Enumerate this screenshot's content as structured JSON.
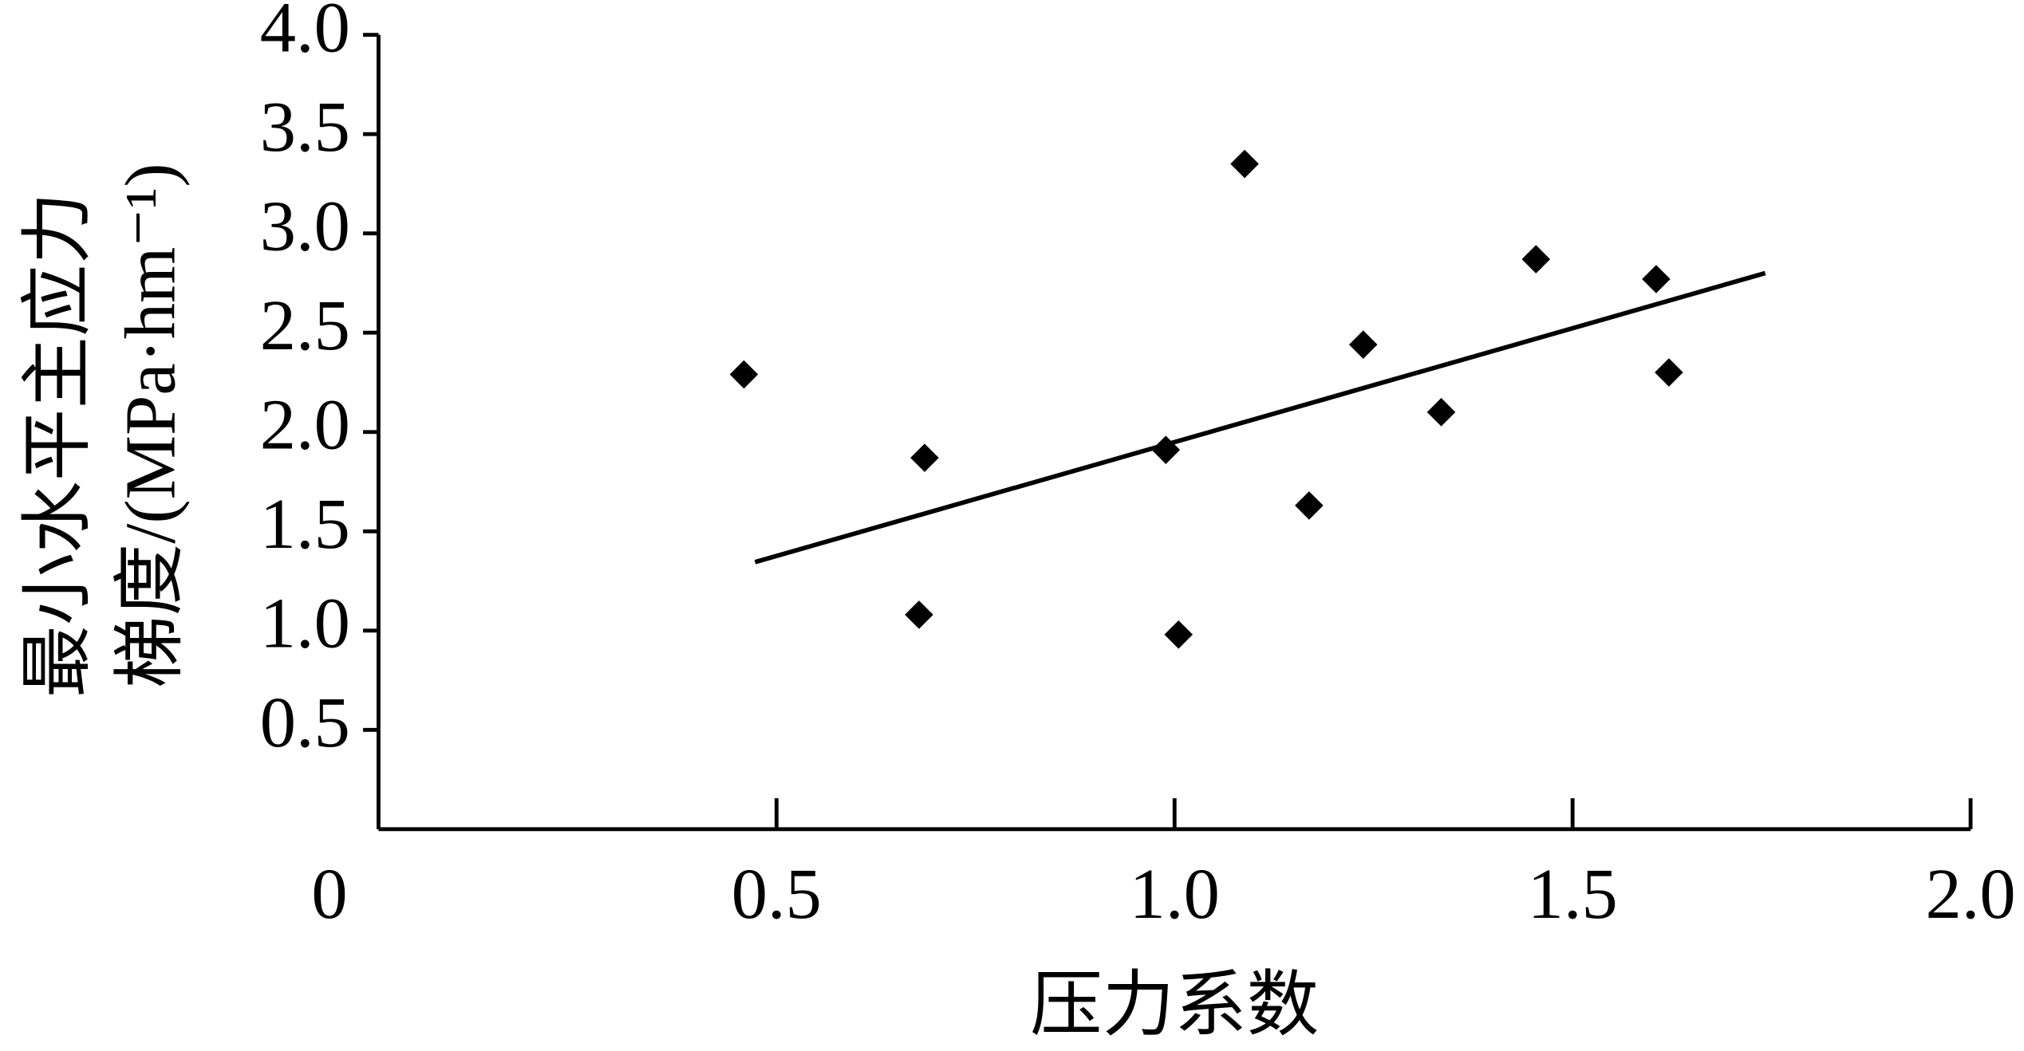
{
  "chart_data": {
    "type": "scatter",
    "xlabel": "压力系数",
    "ylabel": [
      "最小水平主应力",
      "梯度/(MPa·hm⁻¹)"
    ],
    "x": [
      0.459,
      0.686,
      0.679,
      0.989,
      1.005,
      1.088,
      1.169,
      1.237,
      1.335,
      1.454,
      1.605,
      1.621
    ],
    "values": [
      2.29,
      1.87,
      1.08,
      1.91,
      0.98,
      3.35,
      1.63,
      2.44,
      2.1,
      2.87,
      2.77,
      2.3
    ],
    "color": "#000000",
    "trendline": {
      "x": [
        0.473,
        1.742
      ],
      "y": [
        1.345,
        2.8
      ]
    },
    "xlim": [
      0,
      2
    ],
    "xticks": [
      0,
      0.5,
      {
        "value": 1,
        "label": "1.0"
      },
      1.5,
      {
        "value": 2,
        "label": "2.0"
      }
    ],
    "ylim": [
      0,
      4
    ],
    "yticks": [
      0.5,
      {
        "value": 1,
        "label": "1.0"
      },
      1.5,
      {
        "value": 2,
        "label": "2.0"
      },
      2.5,
      {
        "value": 3,
        "label": "3.0"
      },
      3.5,
      {
        "value": 4,
        "label": "4.0"
      }
    ],
    "grid": false
  }
}
